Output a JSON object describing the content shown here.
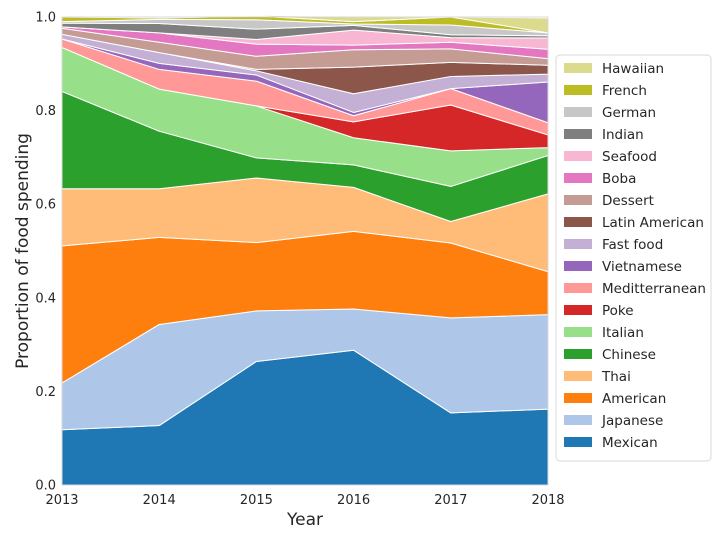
{
  "chart_data": {
    "type": "area",
    "stacked": true,
    "xlabel": "Year",
    "ylabel": "Proportion of food spending",
    "x": [
      2013,
      2014,
      2015,
      2016,
      2017,
      2018
    ],
    "xticks": [
      "2013",
      "2014",
      "2015",
      "2016",
      "2017",
      "2018"
    ],
    "ylim": [
      0,
      1
    ],
    "yticks": [
      "0.0",
      "0.2",
      "0.4",
      "0.6",
      "0.8",
      "1.0"
    ],
    "grid": false,
    "legend_position": "right",
    "series": [
      {
        "name": "Mexican",
        "color": "#1f77b4",
        "values": [
          0.118,
          0.127,
          0.264,
          0.288,
          0.154,
          0.162
        ]
      },
      {
        "name": "Japanese",
        "color": "#aec7e8",
        "values": [
          0.1,
          0.216,
          0.108,
          0.088,
          0.203,
          0.202
        ]
      },
      {
        "name": "American",
        "color": "#ff7f0e",
        "values": [
          0.293,
          0.186,
          0.146,
          0.166,
          0.16,
          0.092
        ]
      },
      {
        "name": "Thai",
        "color": "#ffbb78",
        "values": [
          0.122,
          0.104,
          0.138,
          0.094,
          0.046,
          0.166
        ]
      },
      {
        "name": "Chinese",
        "color": "#2ca02c",
        "values": [
          0.208,
          0.123,
          0.043,
          0.048,
          0.075,
          0.082
        ]
      },
      {
        "name": "Italian",
        "color": "#98df8a",
        "values": [
          0.094,
          0.09,
          0.111,
          0.058,
          0.076,
          0.017
        ]
      },
      {
        "name": "Poke",
        "color": "#d62728",
        "values": [
          0.0,
          0.0,
          0.0,
          0.034,
          0.098,
          0.027
        ]
      },
      {
        "name": "Meditterranean",
        "color": "#ff9896",
        "values": [
          0.018,
          0.042,
          0.053,
          0.013,
          0.035,
          0.026
        ]
      },
      {
        "name": "Vietnamese",
        "color": "#9467bd",
        "values": [
          0.0,
          0.013,
          0.013,
          0.007,
          0.0,
          0.087
        ]
      },
      {
        "name": "Fast food",
        "color": "#c5b0d5",
        "values": [
          0.01,
          0.023,
          0.009,
          0.04,
          0.026,
          0.017
        ]
      },
      {
        "name": "Latin American",
        "color": "#8c564b",
        "values": [
          0.0,
          0.0,
          0.003,
          0.057,
          0.03,
          0.019
        ]
      },
      {
        "name": "Dessert",
        "color": "#c49c94",
        "values": [
          0.013,
          0.022,
          0.028,
          0.037,
          0.029,
          0.014
        ]
      },
      {
        "name": "Boba",
        "color": "#e377c2",
        "values": [
          0.003,
          0.02,
          0.026,
          0.01,
          0.014,
          0.02
        ]
      },
      {
        "name": "Seafood",
        "color": "#f7b6d2",
        "values": [
          0.0,
          0.0,
          0.01,
          0.032,
          0.01,
          0.024
        ]
      },
      {
        "name": "Indian",
        "color": "#7f7f7f",
        "values": [
          0.008,
          0.02,
          0.022,
          0.01,
          0.006,
          0.005
        ]
      },
      {
        "name": "German",
        "color": "#c7c7c7",
        "values": [
          0.003,
          0.009,
          0.02,
          0.003,
          0.021,
          0.006
        ]
      },
      {
        "name": "French",
        "color": "#bcbd22",
        "values": [
          0.01,
          0.003,
          0.008,
          0.005,
          0.017,
          0.0
        ]
      },
      {
        "name": "Hawaiian",
        "color": "#dbdb8d",
        "values": [
          0.0,
          0.002,
          0.002,
          0.01,
          0.0,
          0.032
        ]
      }
    ]
  }
}
